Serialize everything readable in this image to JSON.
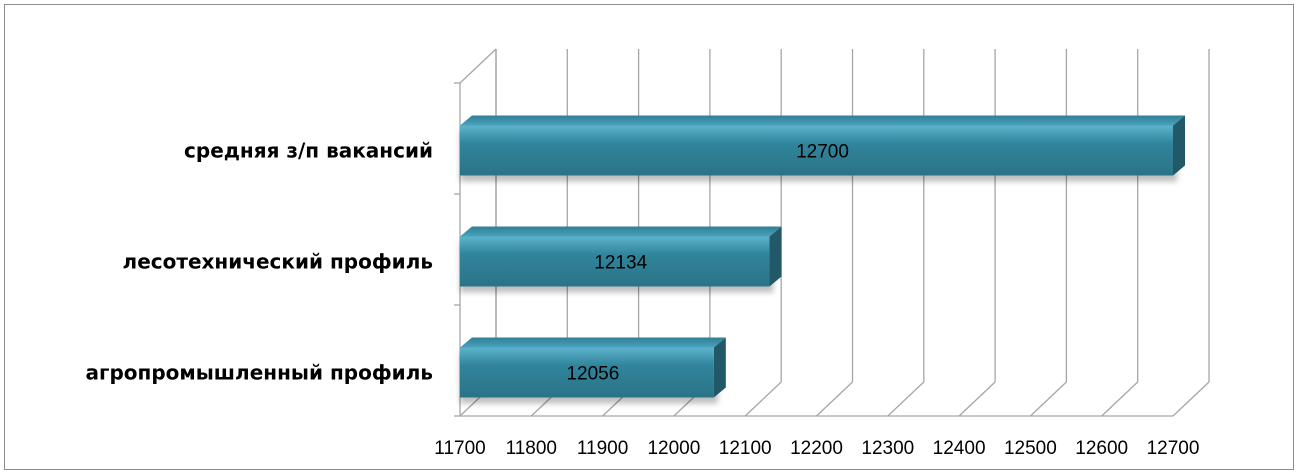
{
  "chart_data": {
    "type": "bar",
    "orientation": "horizontal",
    "style": "3d",
    "categories": [
      "средняя з/п вакансий",
      "лесотехнический профиль",
      "агропромышленный профиль"
    ],
    "values": [
      12700,
      12134,
      12056
    ],
    "data_labels": [
      "12700",
      "12134",
      "12056"
    ],
    "xlim": [
      11700,
      12700
    ],
    "x_ticks": [
      11700,
      11800,
      11900,
      12000,
      12100,
      12200,
      12300,
      12400,
      12500,
      12600,
      12700
    ],
    "x_tick_labels": [
      "11700",
      "11800",
      "11900",
      "12000",
      "12100",
      "12200",
      "12300",
      "12400",
      "12500",
      "12600",
      "12700"
    ],
    "title": "",
    "xlabel": "",
    "ylabel": "",
    "grid": true,
    "legend": false,
    "colors": {
      "bar_front": "#31859c",
      "bar_top": "#4aa3bd",
      "bar_side": "#215968",
      "grid": "#a6a6a6"
    }
  }
}
